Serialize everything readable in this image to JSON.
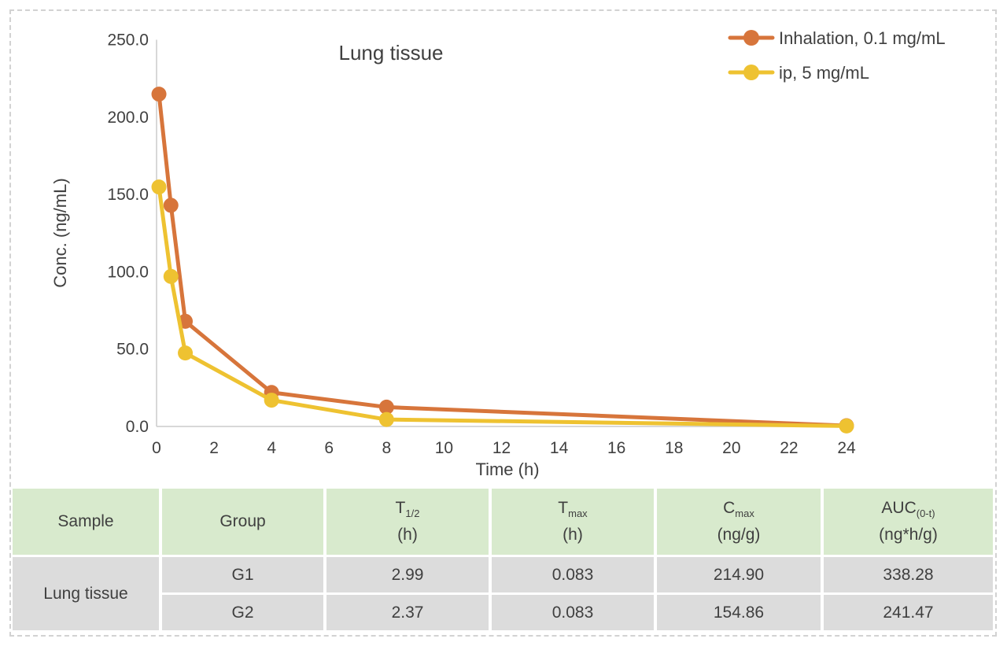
{
  "chart_data": {
    "type": "line",
    "title": "Lung tissue",
    "xlabel": "Time (h)",
    "ylabel": "Conc. (ng/mL)",
    "xlim": [
      0,
      24
    ],
    "ylim": [
      0,
      250
    ],
    "grid": false,
    "legend_position": "top-right",
    "x_ticks": [
      0,
      2,
      4,
      6,
      8,
      10,
      12,
      14,
      16,
      18,
      20,
      22,
      24
    ],
    "y_tick_values": [
      0,
      50,
      100,
      150,
      200,
      250
    ],
    "y_tick_labels": [
      "0.0",
      "50.0",
      "100.0",
      "150.0",
      "200.0",
      "250.0"
    ],
    "axis_color": "#cccccc",
    "text_color": "#404040",
    "series": [
      {
        "name": "Inhalation, 0.1 mg/mL",
        "color": "#d7753b",
        "x": [
          0.083,
          0.5,
          1,
          4,
          8,
          24
        ],
        "y": [
          214.9,
          143,
          68,
          22,
          12.5,
          0.5
        ]
      },
      {
        "name": "ip, 5 mg/mL",
        "color": "#eec231",
        "x": [
          0.083,
          0.5,
          1,
          4,
          8,
          24
        ],
        "y": [
          154.86,
          97,
          47.5,
          17,
          4.5,
          0.3
        ]
      }
    ]
  },
  "table": {
    "header": [
      {
        "main": "Sample",
        "sub": "",
        "unit": ""
      },
      {
        "main": "Group",
        "sub": "",
        "unit": ""
      },
      {
        "main": "T",
        "sub": "1/2",
        "unit": "(h)"
      },
      {
        "main": "T",
        "sub": "max",
        "unit": "(h)"
      },
      {
        "main": "C",
        "sub": "max",
        "unit": "(ng/g)"
      },
      {
        "main": "AUC",
        "sub": "(0-t)",
        "unit": "(ng*h/g)"
      }
    ],
    "sample_label": "Lung tissue",
    "rows": [
      {
        "group": "G1",
        "t_half": "2.99",
        "t_max": "0.083",
        "c_max": "214.90",
        "auc": "338.28"
      },
      {
        "group": "G2",
        "t_half": "2.37",
        "t_max": "0.083",
        "c_max": "154.86",
        "auc": "241.47"
      }
    ],
    "colors": {
      "header_bg": "#d8eacd",
      "row_bg": "#dcdcdc",
      "text": "#3f3f3f"
    }
  }
}
